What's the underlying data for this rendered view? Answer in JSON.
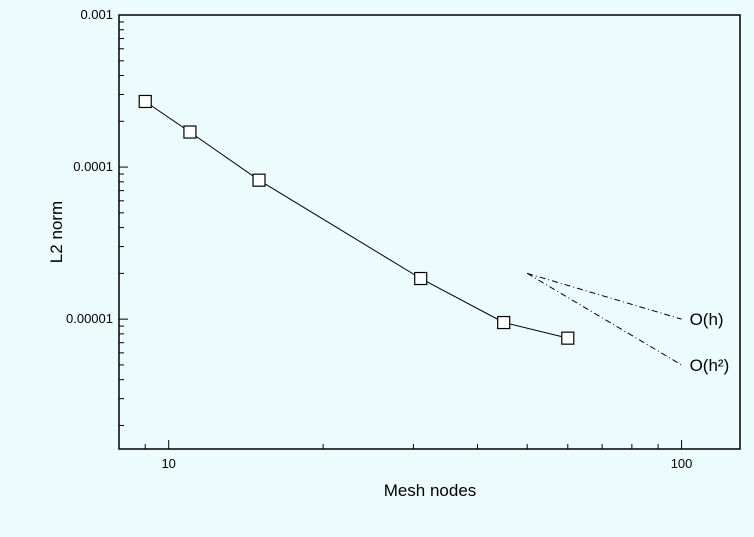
{
  "chart_data": {
    "type": "line",
    "xlabel": "Mesh nodes",
    "ylabel": "L2 norm",
    "xscale": "log",
    "yscale": "log",
    "xlim": [
      8,
      130
    ],
    "ylim": [
      1.4e-06,
      0.001
    ],
    "x_tick_labels": [
      {
        "value": 10,
        "label": "10"
      },
      {
        "value": 100,
        "label": "100"
      }
    ],
    "y_tick_labels": [
      {
        "value": 1e-05,
        "label": "0.00001"
      },
      {
        "value": 0.0001,
        "label": "0.0001"
      },
      {
        "value": 0.001,
        "label": "0.001"
      }
    ],
    "grid": false,
    "marker": "square",
    "series": [
      {
        "x": [
          9,
          11,
          15,
          31,
          45,
          60
        ],
        "y": [
          0.00027,
          0.00017,
          8.2e-05,
          1.85e-05,
          9.5e-06,
          7.5e-06
        ]
      }
    ],
    "reference_slopes": [
      {
        "label": "O(h)",
        "x": [
          50,
          100
        ],
        "y": [
          2e-05,
          1e-05
        ]
      },
      {
        "label": "O(h²)",
        "x": [
          50,
          100
        ],
        "y": [
          2e-05,
          5e-06
        ]
      }
    ]
  }
}
